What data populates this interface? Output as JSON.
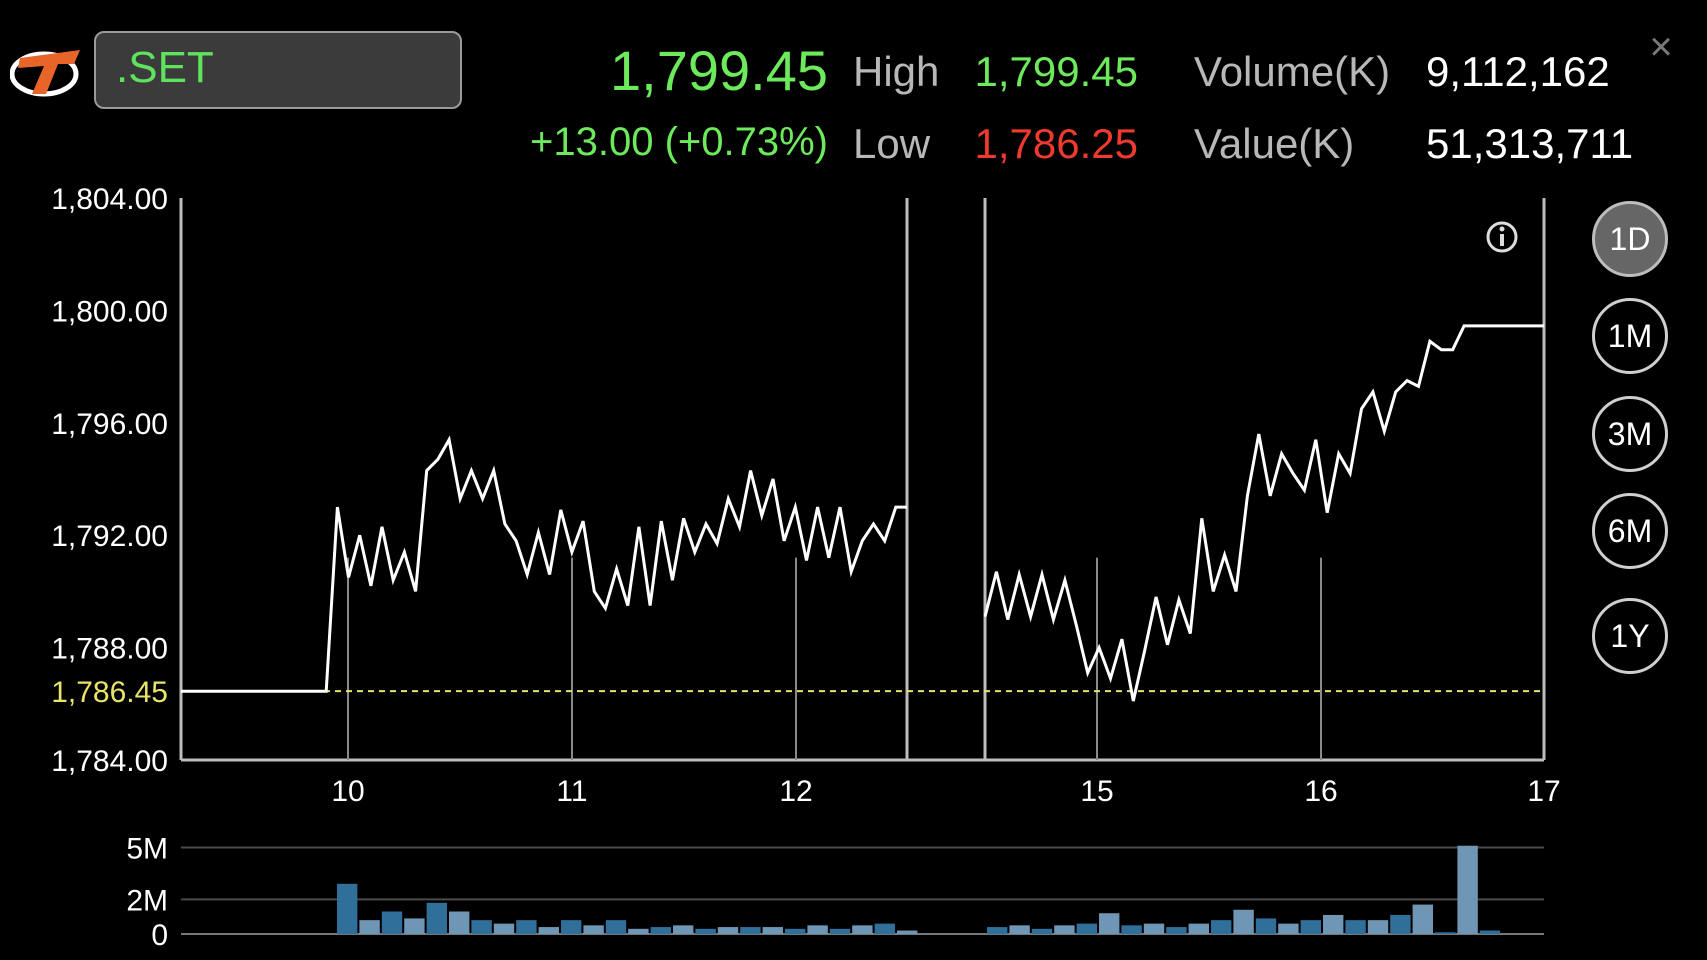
{
  "header": {
    "symbol": ".SET",
    "last_price": "1,799.45",
    "change": "+13.00 (+0.73%)",
    "high_label": "High",
    "high_value": "1,799.45",
    "low_label": "Low",
    "low_value": "1,786.25",
    "volume_label": "Volume(K)",
    "volume_value": "9,112,162",
    "value_label": "Value(K)",
    "value_value": "51,313,711",
    "close_icon": "close-icon",
    "logo_icon": "broker-logo-icon"
  },
  "periods": [
    {
      "label": "1D",
      "active": true
    },
    {
      "label": "1M",
      "active": false
    },
    {
      "label": "3M",
      "active": false
    },
    {
      "label": "6M",
      "active": false
    },
    {
      "label": "1Y",
      "active": false
    }
  ],
  "info_icon": "info-icon",
  "colors": {
    "price_line": "#ffffff",
    "reference_line": "#e8e36a",
    "up": "#6cea5c",
    "down": "#f0392f",
    "volume_bar_dark": "#2f6f9a",
    "volume_bar_light": "#6f97b5"
  },
  "chart_data": [
    {
      "type": "line",
      "ylim": [
        1784,
        1804
      ],
      "y_ticks": [
        "1,804.00",
        "1,800.00",
        "1,796.00",
        "1,792.00",
        "1,788.00",
        "1,784.00"
      ],
      "reference_label": "1,786.45",
      "reference_value": 1786.45,
      "x_tick_labels": [
        "10",
        "11",
        "12",
        "15",
        "16",
        "17"
      ],
      "segments": [
        {
          "name": "session-1",
          "values": [
            1786.45,
            1786.45,
            1786.45,
            1786.45,
            1786.45,
            1786.45,
            1786.45,
            1786.45,
            1786.45,
            1786.45,
            1786.45,
            1786.45,
            1786.45,
            1786.45,
            1793.0,
            1790.5,
            1792.0,
            1790.2,
            1792.3,
            1790.4,
            1791.4,
            1790.0,
            1794.3,
            1794.7,
            1795.4,
            1793.3,
            1794.3,
            1793.3,
            1794.3,
            1792.4,
            1791.8,
            1790.6,
            1792.1,
            1790.6,
            1792.9,
            1791.4,
            1792.5,
            1790.0,
            1789.4,
            1790.8,
            1789.5,
            1792.3,
            1789.5,
            1792.5,
            1790.4,
            1792.6,
            1791.4,
            1792.4,
            1791.7,
            1793.3,
            1792.3,
            1794.3,
            1792.7,
            1794.0,
            1791.8,
            1793.0,
            1791.1,
            1793.0,
            1791.2,
            1793.0,
            1790.7,
            1791.8,
            1792.4,
            1791.8,
            1793.0,
            1793.0
          ]
        },
        {
          "name": "session-2",
          "values": [
            1789.1,
            1790.7,
            1789.0,
            1790.6,
            1789.1,
            1790.6,
            1789.0,
            1790.4,
            1788.8,
            1787.1,
            1788.0,
            1786.9,
            1788.3,
            1786.1,
            1787.9,
            1789.8,
            1788.1,
            1789.7,
            1788.5,
            1792.6,
            1790.0,
            1791.3,
            1790.0,
            1793.4,
            1795.6,
            1793.4,
            1794.9,
            1794.2,
            1793.6,
            1795.4,
            1792.8,
            1794.9,
            1794.2,
            1796.5,
            1797.1,
            1795.7,
            1797.1,
            1797.5,
            1797.3,
            1798.9,
            1798.6,
            1798.6,
            1799.45,
            1799.45,
            1799.45,
            1799.45,
            1799.45,
            1799.45,
            1799.45,
            1799.45
          ]
        }
      ]
    },
    {
      "type": "bar",
      "name": "volume",
      "ylim": [
        0,
        5.2
      ],
      "y_ticks": [
        "5M",
        "2M",
        "0"
      ],
      "session_1_values": [
        2.9,
        0.8,
        1.3,
        0.9,
        1.8,
        1.3,
        0.8,
        0.6,
        0.8,
        0.4,
        0.8,
        0.5,
        0.8,
        0.3,
        0.4,
        0.5,
        0.3,
        0.4,
        0.4,
        0.4,
        0.3,
        0.5,
        0.3,
        0.5,
        0.6,
        0.2
      ],
      "session_2_values": [
        0.4,
        0.5,
        0.3,
        0.5,
        0.6,
        1.2,
        0.5,
        0.6,
        0.4,
        0.6,
        0.8,
        1.4,
        0.9,
        0.6,
        0.8,
        1.1,
        0.8,
        0.8,
        1.1,
        1.7,
        0.1,
        5.1,
        0.2
      ]
    }
  ]
}
